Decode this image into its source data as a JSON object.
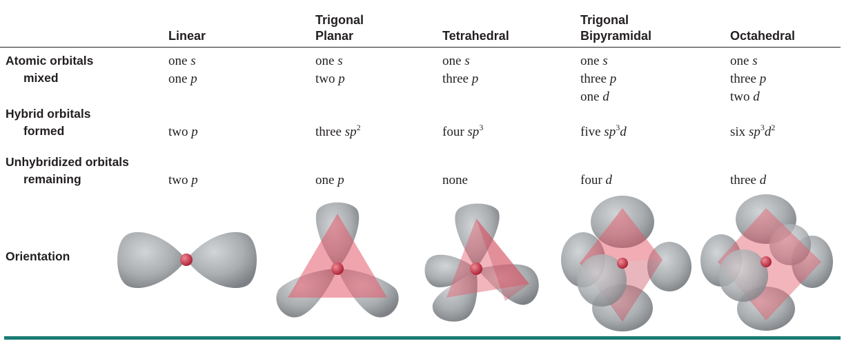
{
  "columns": [
    {
      "id": "linear",
      "line1": "",
      "line2": "Linear"
    },
    {
      "id": "trigonal_planar",
      "line1": "Trigonal",
      "line2": "Planar"
    },
    {
      "id": "tetrahedral",
      "line1": "",
      "line2": "Tetrahedral"
    },
    {
      "id": "trigonal_bipyramidal",
      "line1": "Trigonal",
      "line2": "Bipyramidal"
    },
    {
      "id": "octahedral",
      "line1": "",
      "line2": "Octahedral"
    }
  ],
  "row_labels": {
    "atomic": {
      "line1": "Atomic orbitals",
      "line2": "mixed"
    },
    "hybrid": {
      "line1": "Hybrid orbitals",
      "line2": "formed"
    },
    "unhybrid": {
      "line1": "Unhybridized orbitals",
      "line2": "remaining"
    },
    "orientation": {
      "line1": "Orientation"
    }
  },
  "atomic": [
    {
      "l1_word": "one",
      "l1_sym": "s",
      "l2_word": "one",
      "l2_sym": "p",
      "l3_word": "",
      "l3_sym": ""
    },
    {
      "l1_word": "one",
      "l1_sym": "s",
      "l2_word": "two",
      "l2_sym": "p",
      "l3_word": "",
      "l3_sym": ""
    },
    {
      "l1_word": "one",
      "l1_sym": "s",
      "l2_word": "three",
      "l2_sym": "p",
      "l3_word": "",
      "l3_sym": ""
    },
    {
      "l1_word": "one",
      "l1_sym": "s",
      "l2_word": "three",
      "l2_sym": "p",
      "l3_word": "one",
      "l3_sym": "d"
    },
    {
      "l1_word": "one",
      "l1_sym": "s",
      "l2_word": "three",
      "l2_sym": "p",
      "l3_word": "two",
      "l3_sym": "d"
    }
  ],
  "hybrid": [
    {
      "word": "two",
      "a": "p",
      "a_sup": "",
      "b": "",
      "b_sup": ""
    },
    {
      "word": "three",
      "a": "sp",
      "a_sup": "2",
      "b": "",
      "b_sup": ""
    },
    {
      "word": "four",
      "a": "sp",
      "a_sup": "3",
      "b": "",
      "b_sup": ""
    },
    {
      "word": "five",
      "a": "sp",
      "a_sup": "3",
      "b": "d",
      "b_sup": ""
    },
    {
      "word": "six",
      "a": "sp",
      "a_sup": "3",
      "b": "d",
      "b_sup": "2"
    }
  ],
  "unhybrid": [
    {
      "word": "two",
      "sym": "p"
    },
    {
      "word": "one",
      "sym": "p"
    },
    {
      "word": "none",
      "sym": ""
    },
    {
      "word": "four",
      "sym": "d"
    },
    {
      "word": "three",
      "sym": "d"
    }
  ],
  "colors": {
    "orbital_lobe": "#a9adb0",
    "orbital_lobe_dark": "#7d8185",
    "plane": "#e35a6a",
    "nucleus": "#c8283c",
    "text": "#231f20",
    "bottom_rule": "#1a7c72"
  },
  "orientation_diagrams": [
    {
      "name": "linear-orbital-diagram",
      "lobes": 2
    },
    {
      "name": "trigonal-planar-orbital-diagram",
      "lobes": 3
    },
    {
      "name": "tetrahedral-orbital-diagram",
      "lobes": 4
    },
    {
      "name": "trigonal-bipyramidal-orbital-diagram",
      "lobes": 5
    },
    {
      "name": "octahedral-orbital-diagram",
      "lobes": 6
    }
  ]
}
